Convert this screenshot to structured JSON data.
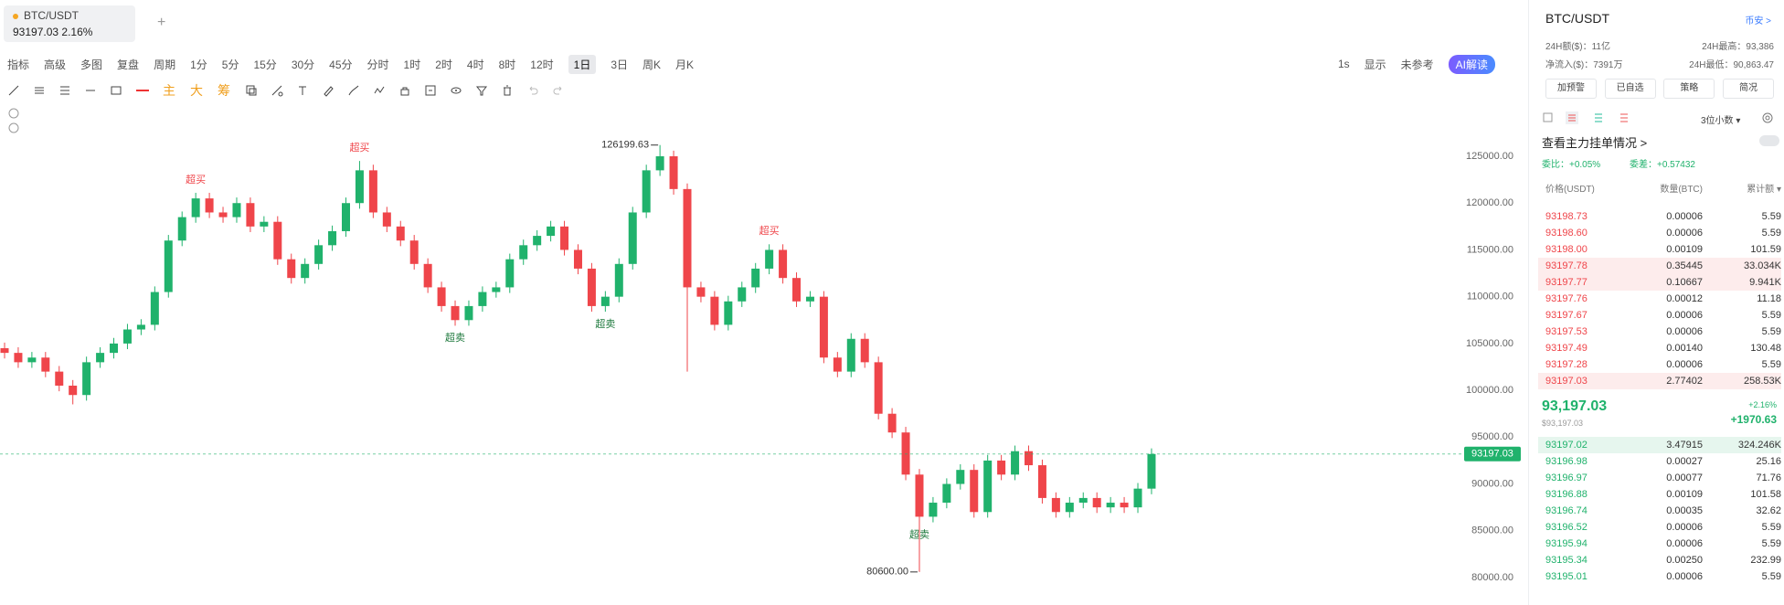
{
  "tab": {
    "symbol": "BTC/USDT",
    "price": "93197.03",
    "change": "2.16%"
  },
  "toolbar": {
    "left": [
      "指标",
      "高级",
      "多图",
      "复盘",
      "周期"
    ],
    "intervals": [
      "1分",
      "5分",
      "15分",
      "30分",
      "45分",
      "分时",
      "1时",
      "2时",
      "4时",
      "8时",
      "12时",
      "1日",
      "3日",
      "周K",
      "月K"
    ],
    "active_interval": "1日",
    "right": [
      "1s",
      "显示",
      "未参考",
      "AI解读"
    ]
  },
  "drawing_tools": [
    "主",
    "大",
    "筹"
  ],
  "chart_data": {
    "type": "candlestick",
    "up_color": "#20b26c",
    "down_color": "#ef454a",
    "open": [
      104500,
      104000,
      103000,
      103500,
      102000,
      100500,
      99500,
      103000,
      104000,
      105000,
      106500,
      107000,
      110500,
      116000,
      118500,
      120500,
      119000,
      118500,
      120000,
      117500,
      118000,
      114000,
      112000,
      113500,
      115500,
      117000,
      120000,
      123500,
      119000,
      117500,
      116000,
      113500,
      111000,
      109000,
      107500,
      109000,
      110500,
      111000,
      114000,
      115500,
      116500,
      117500,
      115000,
      113000,
      109000,
      110000,
      113500,
      119000,
      123500,
      125000,
      121500,
      111000,
      110000,
      107000,
      109500,
      111000,
      113000,
      115000,
      112000,
      109500,
      110000,
      103500,
      102000,
      105500,
      103000,
      97500,
      95500,
      91000,
      86500,
      88000,
      90000,
      91500,
      87000,
      92500,
      91000,
      93500,
      92000,
      88500,
      87000,
      88000,
      88500,
      87500,
      88000,
      87500,
      89500
    ],
    "high": [
      105100,
      104600,
      104100,
      104100,
      102600,
      101100,
      103600,
      104600,
      105600,
      107100,
      107600,
      111100,
      116600,
      119100,
      121100,
      121100,
      119600,
      120600,
      120600,
      118600,
      118600,
      114600,
      114100,
      116100,
      117600,
      120600,
      124500,
      124100,
      119600,
      118100,
      116600,
      114100,
      111600,
      109600,
      109600,
      111100,
      111600,
      114600,
      116100,
      117100,
      118100,
      118100,
      115600,
      113600,
      110600,
      114100,
      119600,
      124100,
      126199.63,
      125600,
      122100,
      111600,
      110600,
      110100,
      111600,
      113600,
      115600,
      115600,
      112600,
      110600,
      110600,
      104100,
      106100,
      106100,
      103600,
      98100,
      96100,
      91600,
      88600,
      90600,
      92100,
      92100,
      93100,
      93100,
      94100,
      94100,
      92600,
      89100,
      88600,
      89100,
      89100,
      88600,
      88600,
      90100,
      93800
    ],
    "low": [
      103400,
      102400,
      102400,
      101400,
      99900,
      98500,
      98900,
      102400,
      103400,
      104400,
      105900,
      106400,
      109900,
      115400,
      117900,
      118400,
      117900,
      117900,
      116900,
      116900,
      113400,
      111400,
      111400,
      112900,
      114900,
      116400,
      119400,
      118400,
      116900,
      115400,
      112900,
      110400,
      108400,
      106900,
      106900,
      108400,
      109900,
      110400,
      113400,
      114900,
      115900,
      114400,
      112400,
      108400,
      108400,
      109400,
      112900,
      118400,
      122900,
      120900,
      102000,
      109400,
      106400,
      106400,
      108900,
      110400,
      112400,
      111400,
      108900,
      108900,
      102900,
      101400,
      101400,
      102400,
      96900,
      94900,
      90400,
      80600,
      85900,
      87400,
      89400,
      86400,
      86400,
      90400,
      90400,
      91400,
      87900,
      86400,
      86400,
      87400,
      86900,
      86900,
      86900,
      86900,
      88900
    ],
    "close": [
      104000,
      103000,
      103500,
      102000,
      100500,
      99500,
      103000,
      104000,
      105000,
      106500,
      107000,
      110500,
      116000,
      118500,
      120500,
      119000,
      118500,
      120000,
      117500,
      118000,
      114000,
      112000,
      113500,
      115500,
      117000,
      120000,
      123500,
      119000,
      117500,
      116000,
      113500,
      111000,
      109000,
      107500,
      109000,
      110500,
      111000,
      114000,
      115500,
      116500,
      117500,
      115000,
      113000,
      109000,
      110000,
      113500,
      119000,
      123500,
      125000,
      121500,
      111000,
      110000,
      107000,
      109500,
      111000,
      113000,
      115000,
      112000,
      109500,
      110000,
      103500,
      102000,
      105500,
      103000,
      97500,
      95500,
      91000,
      86500,
      88000,
      90000,
      91500,
      87000,
      92500,
      91000,
      93500,
      92000,
      88500,
      87000,
      88000,
      88500,
      87500,
      88000,
      87500,
      89500,
      93197.03
    ],
    "ylim": [
      77070,
      130760
    ],
    "yticks": [
      {
        "value": 80000,
        "label": "80000.00"
      },
      {
        "value": 85000,
        "label": "85000.00"
      },
      {
        "value": 90000,
        "label": "90000.00"
      },
      {
        "value": 95000,
        "label": "95000.00"
      },
      {
        "value": 100000,
        "label": "100000.00"
      },
      {
        "value": 105000,
        "label": "105000.00"
      },
      {
        "value": 110000,
        "label": "110000.00"
      },
      {
        "value": 115000,
        "label": "115000.00"
      },
      {
        "value": 120000,
        "label": "120000.00"
      },
      {
        "value": 125000,
        "label": "125000.00"
      }
    ],
    "grid": false,
    "last_price": {
      "value": 93197.03,
      "label": "93197.03"
    },
    "extreme_labels": [
      "126199.63",
      "80600.00"
    ],
    "overbought_labels": [
      "超买",
      "超买",
      "超买"
    ],
    "oversold_labels": [
      "超卖",
      "超卖",
      "超卖"
    ]
  },
  "panel": {
    "symbol": "BTC/USDT",
    "exchange": "币安 >",
    "stats": [
      [
        "24H额($)：11亿",
        "24H最高：93,386"
      ],
      [
        "净流入($)：7391万",
        "24H最低：90,863.47"
      ]
    ],
    "buttons": [
      "加预警",
      "已自选",
      "策略",
      "简况"
    ],
    "precision": "3位小数 ▾",
    "whale_link": "查看主力挂单情况 >",
    "ratio": "委比：+0.05%",
    "diff": "委差：+0.57432"
  },
  "order_book": {
    "headers": [
      "价格(USDT)",
      "数量(BTC)",
      "累计额 ▾"
    ],
    "asks": [
      [
        "93198.73",
        "0.00006",
        "5.59"
      ],
      [
        "93198.60",
        "0.00006",
        "5.59"
      ],
      [
        "93198.00",
        "0.00109",
        "101.59"
      ],
      [
        "93197.78",
        "0.35445",
        "33.034K"
      ],
      [
        "93197.77",
        "0.10667",
        "9.941K"
      ],
      [
        "93197.76",
        "0.00012",
        "11.18"
      ],
      [
        "93197.67",
        "0.00006",
        "5.59"
      ],
      [
        "93197.53",
        "0.00006",
        "5.59"
      ],
      [
        "93197.49",
        "0.00140",
        "130.48"
      ],
      [
        "93197.28",
        "0.00006",
        "5.59"
      ],
      [
        "93197.03",
        "2.77402",
        "258.53K"
      ]
    ],
    "last": {
      "price": "93,197.03",
      "usd": "$93,197.03",
      "pct": "+2.16%",
      "change": "+1970.63"
    },
    "bids": [
      [
        "93197.02",
        "3.47915",
        "324.246K"
      ],
      [
        "93196.98",
        "0.00027",
        "25.16"
      ],
      [
        "93196.97",
        "0.00077",
        "71.76"
      ],
      [
        "93196.88",
        "0.00109",
        "101.58"
      ],
      [
        "93196.74",
        "0.00035",
        "32.62"
      ],
      [
        "93196.52",
        "0.00006",
        "5.59"
      ],
      [
        "93195.94",
        "0.00006",
        "5.59"
      ],
      [
        "93195.34",
        "0.00250",
        "232.99"
      ],
      [
        "93195.01",
        "0.00006",
        "5.59"
      ]
    ]
  }
}
